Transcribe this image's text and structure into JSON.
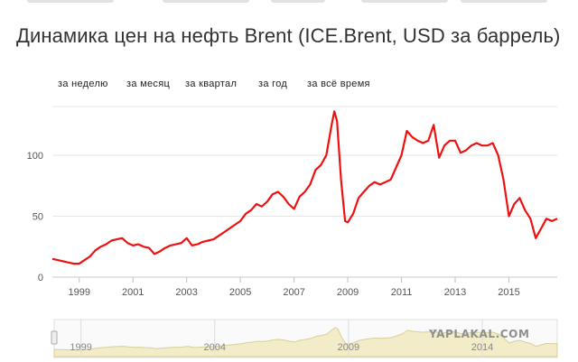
{
  "title": "Динамика цен на нефть Brent (ICE.Brent, USD за баррель)",
  "range_buttons": [
    "за неделю",
    "за месяц",
    "за квартал",
    "за год",
    "за всё время"
  ],
  "watermark": "YAPLAKAL.COM",
  "colors": {
    "line": "#ee1111",
    "grid": "#e6e6e6",
    "navigator_band": "#f3ecc8",
    "navigator_line": "#d8cf9a"
  },
  "chart_data": {
    "type": "line",
    "title": "Динамика цен на нефть Brent (ICE.Brent, USD за баррель)",
    "xlabel": "",
    "ylabel": "",
    "x_range": [
      1998.0,
      2016.8
    ],
    "ylim": [
      0,
      140
    ],
    "y_ticks": [
      0,
      50,
      100
    ],
    "x_ticks": [
      1999,
      2001,
      2003,
      2005,
      2007,
      2009,
      2011,
      2013,
      2015
    ],
    "grid": true,
    "navigator_ticks": [
      1999,
      2004,
      2009,
      2014
    ],
    "series": [
      {
        "x": [
          1998.0,
          1998.2,
          1998.4,
          1998.6,
          1998.8,
          1999.0,
          1999.2,
          1999.4,
          1999.6,
          1999.8,
          2000.0,
          2000.2,
          2000.4,
          2000.6,
          2000.8,
          2001.0,
          2001.2,
          2001.4,
          2001.6,
          2001.8,
          2002.0,
          2002.2,
          2002.4,
          2002.6,
          2002.8,
          2003.0,
          2003.2,
          2003.4,
          2003.6,
          2003.8,
          2004.0,
          2004.2,
          2004.4,
          2004.6,
          2004.8,
          2005.0,
          2005.2,
          2005.4,
          2005.6,
          2005.8,
          2006.0,
          2006.2,
          2006.4,
          2006.6,
          2006.8,
          2007.0,
          2007.2,
          2007.4,
          2007.6,
          2007.8,
          2008.0,
          2008.2,
          2008.4,
          2008.5,
          2008.6,
          2008.75,
          2008.9,
          2009.0,
          2009.2,
          2009.4,
          2009.6,
          2009.8,
          2010.0,
          2010.2,
          2010.4,
          2010.6,
          2010.8,
          2011.0,
          2011.2,
          2011.4,
          2011.6,
          2011.8,
          2012.0,
          2012.2,
          2012.4,
          2012.6,
          2012.8,
          2013.0,
          2013.2,
          2013.4,
          2013.6,
          2013.8,
          2014.0,
          2014.2,
          2014.4,
          2014.6,
          2014.8,
          2015.0,
          2015.2,
          2015.4,
          2015.6,
          2015.8,
          2016.0,
          2016.2,
          2016.4,
          2016.6,
          2016.8
        ],
        "values": [
          15,
          14,
          13,
          12,
          11,
          11,
          14,
          17,
          22,
          25,
          27,
          30,
          31,
          32,
          28,
          26,
          27,
          25,
          24,
          19,
          21,
          24,
          26,
          27,
          28,
          32,
          26,
          27,
          29,
          30,
          31,
          34,
          37,
          40,
          43,
          46,
          52,
          55,
          60,
          58,
          62,
          68,
          70,
          66,
          60,
          56,
          66,
          70,
          76,
          88,
          92,
          100,
          125,
          136,
          128,
          80,
          46,
          45,
          52,
          65,
          70,
          75,
          78,
          76,
          78,
          80,
          90,
          100,
          120,
          115,
          112,
          110,
          112,
          125,
          98,
          108,
          112,
          112,
          102,
          104,
          108,
          110,
          108,
          108,
          110,
          100,
          80,
          50,
          60,
          65,
          55,
          48,
          32,
          40,
          48,
          46,
          48
        ]
      }
    ]
  }
}
